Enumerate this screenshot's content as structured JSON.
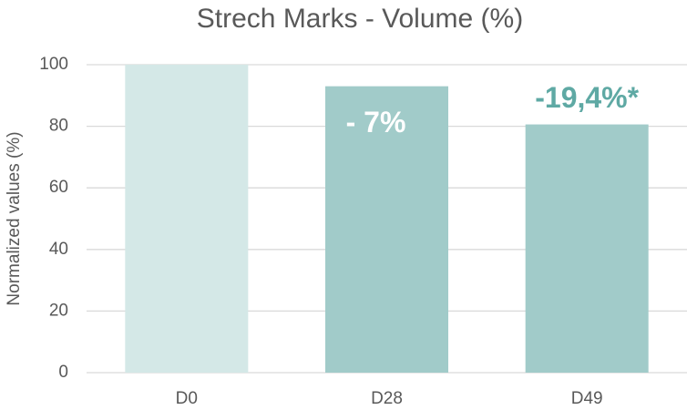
{
  "chart_data": {
    "type": "bar",
    "title": "Strech Marks - Volume (%)",
    "y_label": "Normalized values (%)",
    "categories": [
      "D0",
      "D28",
      "D49"
    ],
    "values": [
      100,
      93,
      80.6
    ],
    "colors": [
      "#d4e8e7",
      "#a1cbc9",
      "#a1cbc9"
    ],
    "ylim": [
      0,
      100
    ],
    "yticks": [
      0,
      20,
      40,
      60,
      80,
      100
    ],
    "grid": true,
    "annotations": [
      {
        "text": "- 7%",
        "category": "D28",
        "position": "inside",
        "color": "#ffffff"
      },
      {
        "text": "-19,4%*",
        "category": "D49",
        "position": "above",
        "color": "#5fa9a4"
      }
    ]
  }
}
